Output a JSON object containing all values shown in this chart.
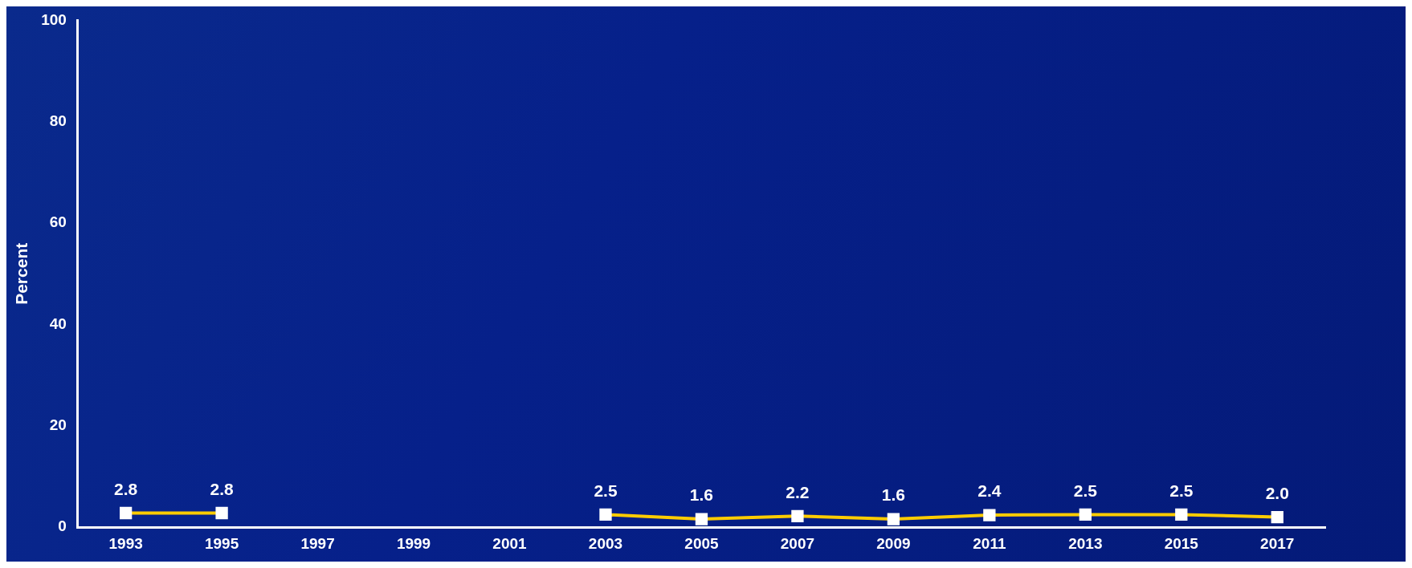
{
  "chart_data": {
    "type": "line",
    "ylabel": "Percent",
    "categories": [
      "1993",
      "1995",
      "1997",
      "1999",
      "2001",
      "2003",
      "2005",
      "2007",
      "2009",
      "2011",
      "2013",
      "2015",
      "2017"
    ],
    "series": [
      {
        "color": "#ffcc00",
        "values": [
          2.8,
          2.8,
          null,
          null,
          null,
          2.5,
          1.6,
          2.2,
          1.6,
          2.4,
          2.5,
          2.5,
          2.0
        ],
        "value_labels": [
          "2.8",
          "2.8",
          null,
          null,
          null,
          "2.5",
          "1.6",
          "2.2",
          "1.6",
          "2.4",
          "2.5",
          "2.5",
          "2.0"
        ]
      }
    ],
    "ylim": [
      0,
      100
    ],
    "yticks": [
      0,
      20,
      40,
      60,
      80,
      100
    ],
    "grid": false,
    "legend": false,
    "marker": "square"
  }
}
